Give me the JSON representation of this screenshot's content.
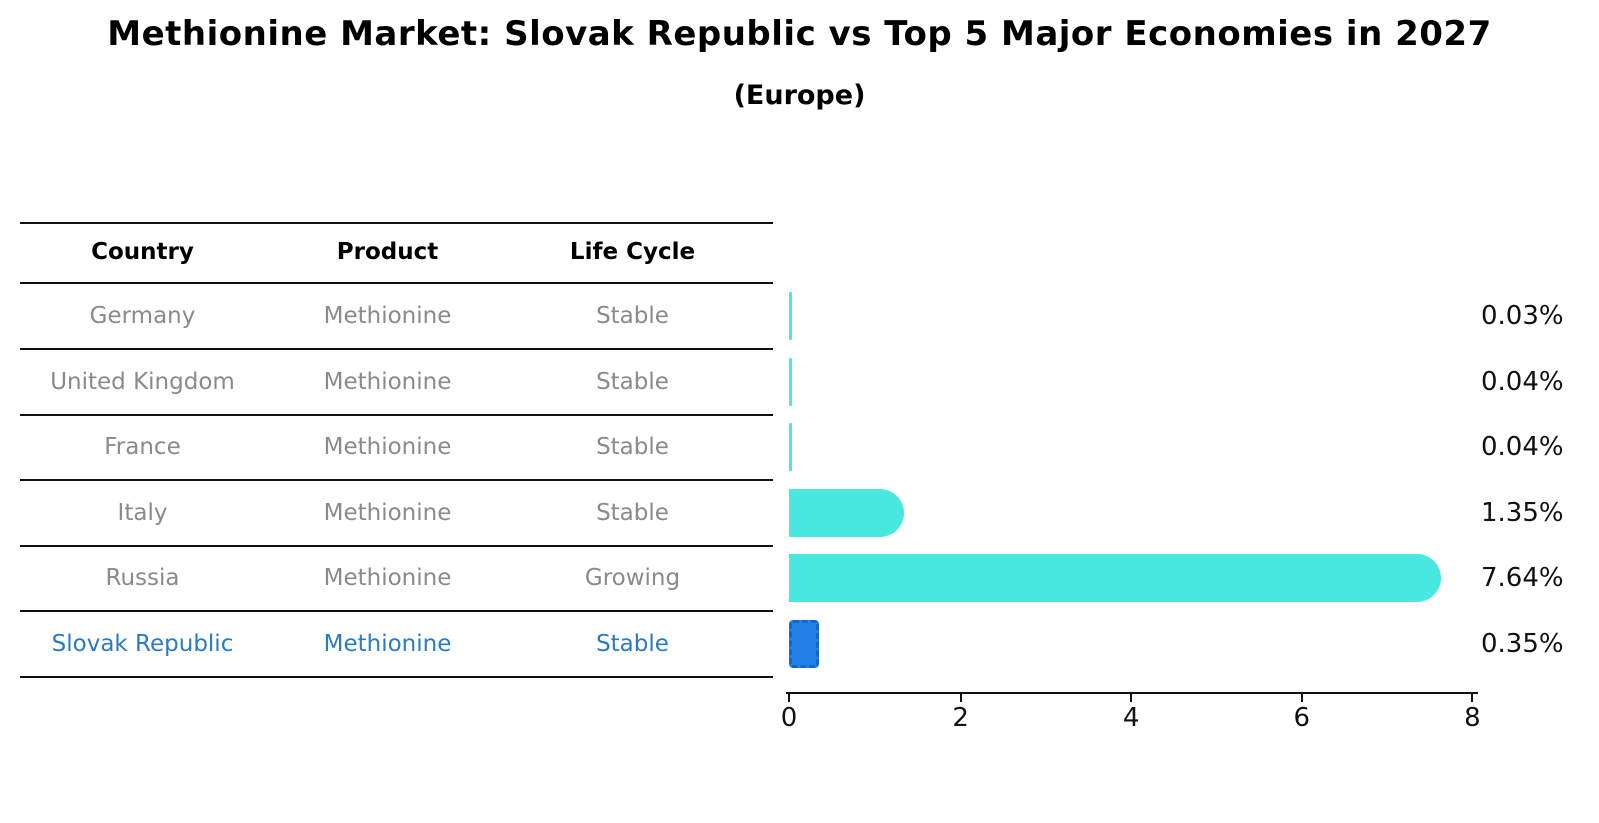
{
  "title": "Methionine Market: Slovak Republic vs Top 5 Major Economies in 2027",
  "subtitle": "(Europe)",
  "table": {
    "headers": {
      "country": "Country",
      "product": "Product",
      "life_cycle": "Life Cycle"
    },
    "rows": [
      {
        "country": "Germany",
        "product": "Methionine",
        "life_cycle": "Stable",
        "highlight": false
      },
      {
        "country": "United Kingdom",
        "product": "Methionine",
        "life_cycle": "Stable",
        "highlight": false
      },
      {
        "country": "France",
        "product": "Methionine",
        "life_cycle": "Stable",
        "highlight": false
      },
      {
        "country": "Italy",
        "product": "Methionine",
        "life_cycle": "Stable",
        "highlight": false
      },
      {
        "country": "Russia",
        "product": "Methionine",
        "life_cycle": "Growing",
        "highlight": false
      },
      {
        "country": "Slovak Republic",
        "product": "Methionine",
        "life_cycle": "Stable",
        "highlight": true
      }
    ]
  },
  "chart_data": {
    "type": "bar",
    "orientation": "horizontal",
    "title": "Methionine Market: Slovak Republic vs Top 5 Major Economies in 2027 (Europe)",
    "categories": [
      "Germany",
      "United Kingdom",
      "France",
      "Italy",
      "Russia",
      "Slovak Republic"
    ],
    "values": [
      0.03,
      0.04,
      0.04,
      1.35,
      7.64,
      0.35
    ],
    "labels": [
      "0.03%",
      "0.04%",
      "0.04%",
      "1.35%",
      "7.64%",
      "0.35%"
    ],
    "xlabel": "",
    "ylabel": "",
    "xlim": [
      0,
      8
    ],
    "xticks": [
      0,
      2,
      4,
      6,
      8
    ],
    "xtick_labels": [
      "0",
      "2",
      "4",
      "6",
      "8"
    ],
    "grid": false,
    "legend": false,
    "bar_color": "#48E8E0",
    "highlight_index": 5,
    "highlight_color": "#2282E8",
    "highlight_border_color": "#1565D0",
    "highlight_border_style": "dashed"
  },
  "colors": {
    "title_text": "#000000",
    "table_text": "#8a8a8a",
    "highlight_text": "#2b7bc2",
    "axis": "#111111"
  }
}
